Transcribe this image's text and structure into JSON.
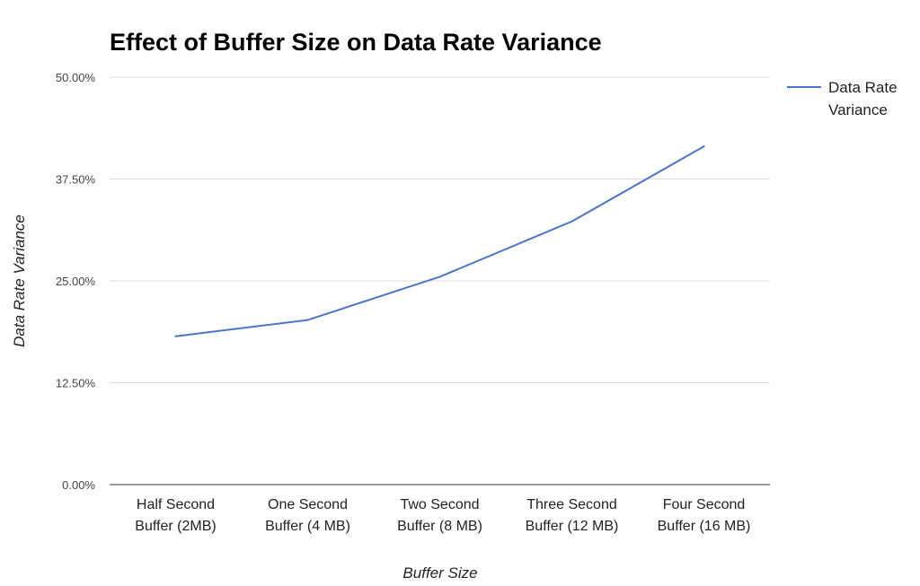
{
  "chart_data": {
    "type": "line",
    "title": "Effect of Buffer Size on Data Rate Variance",
    "xlabel": "Buffer Size",
    "ylabel": "Data Rate Variance",
    "categories": [
      [
        "Half Second",
        "Buffer (2MB)"
      ],
      [
        "One Second",
        "Buffer (4 MB)"
      ],
      [
        "Two Second",
        "Buffer (8 MB)"
      ],
      [
        "Three Second",
        "Buffer (12 MB)"
      ],
      [
        "Four Second",
        "Buffer (16 MB)"
      ]
    ],
    "y_ticks": [
      "0.00%",
      "12.50%",
      "25.00%",
      "37.50%",
      "50.00%"
    ],
    "ylim": [
      0,
      50
    ],
    "grid": true,
    "legend_position": "right",
    "series": [
      {
        "name": [
          "Data Rate",
          "Variance"
        ],
        "color": "#4a74d0",
        "values": [
          18.2,
          20.2,
          25.5,
          32.3,
          41.5
        ]
      }
    ]
  }
}
